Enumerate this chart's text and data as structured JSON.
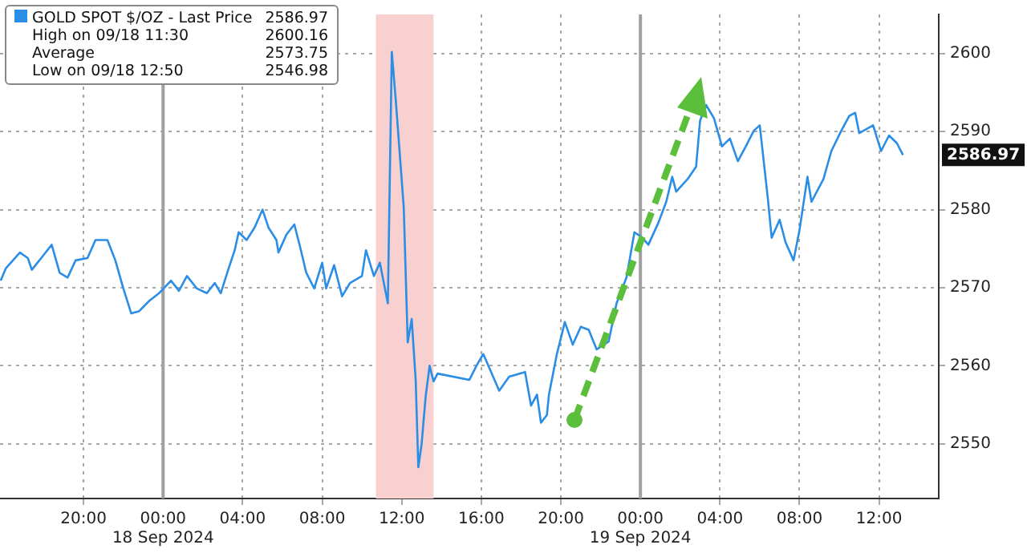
{
  "chart_data": {
    "type": "line",
    "xlim": [
      "2024-09-17T15:48",
      "2024-09-19T15:00"
    ],
    "xticks": [
      {
        "value": "2024-09-17T20:00",
        "label": "20:00"
      },
      {
        "value": "2024-09-18T00:00",
        "label": "00:00\n18 Sep 2024"
      },
      {
        "value": "2024-09-18T04:00",
        "label": "04:00"
      },
      {
        "value": "2024-09-18T08:00",
        "label": "08:00"
      },
      {
        "value": "2024-09-18T12:00",
        "label": "12:00"
      },
      {
        "value": "2024-09-18T16:00",
        "label": "16:00"
      },
      {
        "value": "2024-09-18T20:00",
        "label": "20:00"
      },
      {
        "value": "2024-09-19T00:00",
        "label": "00:00\n19 Sep 2024"
      },
      {
        "value": "2024-09-19T04:00",
        "label": "04:00"
      },
      {
        "value": "2024-09-19T08:00",
        "label": "08:00"
      },
      {
        "value": "2024-09-19T12:00",
        "label": "12:00"
      }
    ],
    "ylim": [
      2543,
      2605
    ],
    "yticks": [
      2550,
      2560,
      2570,
      2580,
      2590,
      2600
    ],
    "grid": true,
    "legend": "top left",
    "marker": "none",
    "line_style": "solid",
    "series": [
      {
        "name": "GOLD SPOT $/OZ - Last Price",
        "color": "#2a8de6",
        "x": [
          "2024-09-17T15:50",
          "2024-09-17T16:06",
          "2024-09-17T16:48",
          "2024-09-17T17:12",
          "2024-09-17T17:24",
          "2024-09-17T18:00",
          "2024-09-17T18:24",
          "2024-09-17T18:48",
          "2024-09-17T19:12",
          "2024-09-17T19:36",
          "2024-09-17T20:12",
          "2024-09-17T20:36",
          "2024-09-17T21:12",
          "2024-09-17T21:36",
          "2024-09-17T22:00",
          "2024-09-17T22:24",
          "2024-09-17T22:48",
          "2024-09-17T23:18",
          "2024-09-17T23:48",
          "2024-09-18T00:24",
          "2024-09-18T00:48",
          "2024-09-18T01:12",
          "2024-09-18T01:42",
          "2024-09-18T02:12",
          "2024-09-18T02:36",
          "2024-09-18T02:54",
          "2024-09-18T03:18",
          "2024-09-18T03:36",
          "2024-09-18T03:48",
          "2024-09-18T04:12",
          "2024-09-18T04:36",
          "2024-09-18T05:00",
          "2024-09-18T05:18",
          "2024-09-18T05:42",
          "2024-09-18T05:48",
          "2024-09-18T06:12",
          "2024-09-18T06:36",
          "2024-09-18T06:54",
          "2024-09-18T07:12",
          "2024-09-18T07:36",
          "2024-09-18T08:00",
          "2024-09-18T08:12",
          "2024-09-18T08:36",
          "2024-09-18T09:00",
          "2024-09-18T09:24",
          "2024-09-18T10:00",
          "2024-09-18T10:12",
          "2024-09-18T10:36",
          "2024-09-18T10:54",
          "2024-09-18T11:18",
          "2024-09-18T11:30",
          "2024-09-18T11:42",
          "2024-09-18T12:06",
          "2024-09-18T12:18",
          "2024-09-18T12:30",
          "2024-09-18T12:42",
          "2024-09-18T12:50",
          "2024-09-18T13:00",
          "2024-09-18T13:12",
          "2024-09-18T13:24",
          "2024-09-18T13:36",
          "2024-09-18T13:48",
          "2024-09-18T15:24",
          "2024-09-18T15:48",
          "2024-09-18T16:06",
          "2024-09-18T16:54",
          "2024-09-18T17:24",
          "2024-09-18T18:12",
          "2024-09-18T18:30",
          "2024-09-18T18:48",
          "2024-09-18T19:00",
          "2024-09-18T19:18",
          "2024-09-18T19:24",
          "2024-09-18T19:48",
          "2024-09-18T20:12",
          "2024-09-18T20:36",
          "2024-09-18T21:00",
          "2024-09-18T21:24",
          "2024-09-18T21:48",
          "2024-09-18T22:24",
          "2024-09-18T22:48",
          "2024-09-18T23:18",
          "2024-09-18T23:42",
          "2024-09-19T00:06",
          "2024-09-19T00:24",
          "2024-09-19T00:54",
          "2024-09-19T01:18",
          "2024-09-19T01:36",
          "2024-09-19T01:48",
          "2024-09-19T02:24",
          "2024-09-19T02:48",
          "2024-09-19T03:00",
          "2024-09-19T03:18",
          "2024-09-19T03:42",
          "2024-09-19T04:06",
          "2024-09-19T04:30",
          "2024-09-19T04:54",
          "2024-09-19T05:18",
          "2024-09-19T05:42",
          "2024-09-19T06:00",
          "2024-09-19T06:24",
          "2024-09-19T06:36",
          "2024-09-19T07:00",
          "2024-09-19T07:18",
          "2024-09-19T07:42",
          "2024-09-19T08:00",
          "2024-09-19T08:24",
          "2024-09-19T08:36",
          "2024-09-19T09:12",
          "2024-09-19T09:36",
          "2024-09-19T10:06",
          "2024-09-19T10:30",
          "2024-09-19T10:48",
          "2024-09-19T11:00",
          "2024-09-19T11:42",
          "2024-09-19T12:06",
          "2024-09-19T12:30",
          "2024-09-19T12:54",
          "2024-09-19T13:12"
        ],
        "values": [
          2570.9,
          2572.5,
          2574.5,
          2573.8,
          2572.3,
          2574.2,
          2575.5,
          2571.9,
          2571.3,
          2573.5,
          2573.8,
          2576.1,
          2576.1,
          2573.5,
          2569.9,
          2566.7,
          2567.0,
          2568.3,
          2569.3,
          2570.9,
          2569.6,
          2571.5,
          2569.9,
          2569.3,
          2570.6,
          2569.3,
          2572.5,
          2574.8,
          2577.1,
          2576.1,
          2577.7,
          2580.0,
          2577.7,
          2576.1,
          2574.5,
          2576.8,
          2578.1,
          2575.1,
          2571.9,
          2569.9,
          2573.2,
          2569.9,
          2572.9,
          2568.9,
          2570.6,
          2571.5,
          2574.8,
          2571.5,
          2573.2,
          2568.0,
          2600.2,
          2594.0,
          2580.3,
          2563.0,
          2566.0,
          2558.2,
          2547.0,
          2550.0,
          2556.0,
          2560.0,
          2558.0,
          2559.0,
          2558.2,
          2560.2,
          2561.5,
          2556.8,
          2558.6,
          2559.2,
          2554.9,
          2556.3,
          2552.7,
          2553.7,
          2556.3,
          2561.5,
          2565.6,
          2562.7,
          2565.0,
          2564.6,
          2562.1,
          2563.1,
          2568.0,
          2571.3,
          2577.1,
          2576.4,
          2575.5,
          2578.3,
          2581.0,
          2584.2,
          2582.3,
          2584.0,
          2585.5,
          2591.4,
          2593.4,
          2591.7,
          2588.1,
          2589.1,
          2586.2,
          2588.1,
          2590.1,
          2590.8,
          2581.6,
          2576.4,
          2578.7,
          2575.8,
          2573.5,
          2577.4,
          2584.2,
          2581.0,
          2583.9,
          2587.5,
          2590.1,
          2592.0,
          2592.4,
          2589.8,
          2590.8,
          2587.5,
          2589.5,
          2588.5,
          2587.0
        ]
      }
    ],
    "bands": [
      {
        "axis": "x",
        "from": "2024-09-18T10:42",
        "to": "2024-09-18T13:36",
        "color": "#f9d0d0"
      }
    ],
    "annotations": [
      "2586.97",
      "High on 09/18 11:30",
      "2600.16",
      "Average",
      "2573.75",
      "Low on 09/18 12:50",
      "2546.98",
      "2586.97"
    ]
  }
}
